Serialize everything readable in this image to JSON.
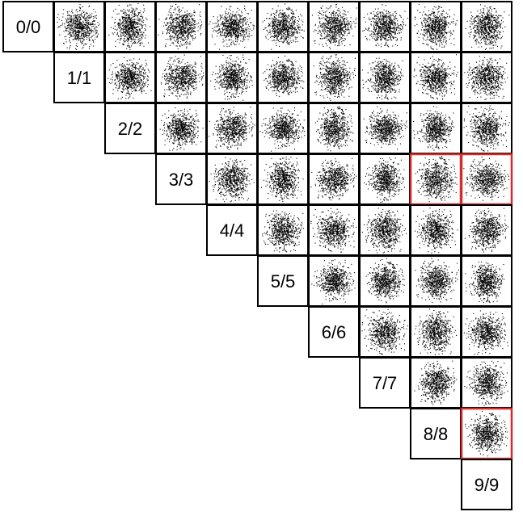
{
  "chart_data": {
    "type": "scatter",
    "matrix_size": 10,
    "layout": "upper-triangular",
    "diagonal_labels": [
      "0/0",
      "1/1",
      "2/2",
      "3/3",
      "4/4",
      "5/5",
      "6/6",
      "7/7",
      "8/8",
      "9/9"
    ],
    "highlighted_cells": [
      {
        "row": 3,
        "col": 8
      },
      {
        "row": 3,
        "col": 9
      },
      {
        "row": 8,
        "col": 9
      }
    ],
    "cell_style": {
      "point_color": "#000000",
      "frame_color": "#000000",
      "highlight_color": "#d42a2a"
    }
  }
}
